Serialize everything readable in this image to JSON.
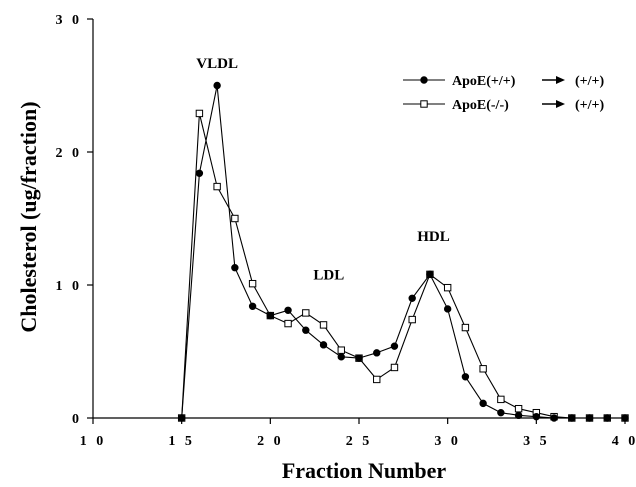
{
  "chart_data": {
    "type": "line",
    "title": "",
    "xlabel": "Fraction Number",
    "ylabel": "Cholesterol (ug/fraction)",
    "xlim": [
      10,
      40
    ],
    "ylim": [
      0,
      30
    ],
    "x_ticks": [
      10,
      15,
      20,
      25,
      30,
      35,
      40
    ],
    "x_tick_labels": [
      "1 0",
      "1 5",
      "2 0",
      "2 5",
      "3 0",
      "3 5",
      "4 0"
    ],
    "y_ticks": [
      0,
      10,
      20,
      30
    ],
    "y_tick_labels": [
      "0",
      "1 0",
      "2 0",
      "3 0"
    ],
    "grid": false,
    "legend_position": "top-right",
    "annotations": [
      {
        "text": "VLDL",
        "x": 17,
        "y": 26.3
      },
      {
        "text": "LDL",
        "x": 23.3,
        "y": 10.4
      },
      {
        "text": "HDL",
        "x": 29.2,
        "y": 13.3
      }
    ],
    "series": [
      {
        "name": "ApoE(+/+)",
        "name_suffix": "(+/+)",
        "marker": "filled-circle",
        "x": [
          15,
          16,
          17,
          18,
          19,
          20,
          21,
          22,
          23,
          24,
          25,
          26,
          27,
          28,
          29,
          30,
          31,
          32,
          33,
          34,
          35,
          36,
          37,
          38,
          39,
          40
        ],
        "y": [
          0,
          18.4,
          25.0,
          11.3,
          8.4,
          7.7,
          8.1,
          6.6,
          5.5,
          4.6,
          4.5,
          4.9,
          5.4,
          9.0,
          10.8,
          8.2,
          3.1,
          1.1,
          0.4,
          0.2,
          0.1,
          0,
          0,
          0,
          0,
          0
        ]
      },
      {
        "name": "ApoE(-/-)",
        "name_suffix": "(+/+)",
        "marker": "open-square",
        "x": [
          15,
          16,
          17,
          18,
          19,
          20,
          21,
          22,
          23,
          24,
          25,
          26,
          27,
          28,
          29,
          30,
          31,
          32,
          33,
          34,
          35,
          36,
          37,
          38,
          39,
          40
        ],
        "y": [
          0,
          22.9,
          17.4,
          15.0,
          10.1,
          7.7,
          7.1,
          7.9,
          7.0,
          5.1,
          4.5,
          2.9,
          3.8,
          7.4,
          10.8,
          9.8,
          6.8,
          3.7,
          1.4,
          0.7,
          0.4,
          0.1,
          0,
          0,
          0,
          0
        ]
      }
    ]
  }
}
